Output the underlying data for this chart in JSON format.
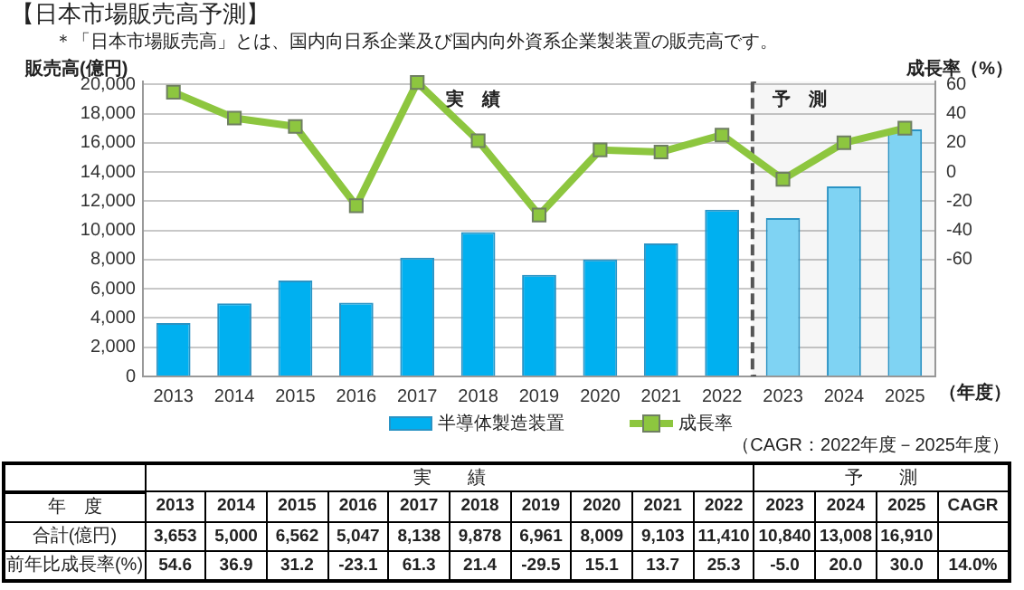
{
  "chart_data": {
    "type": "bar",
    "title": "【日本市場販売高予測】",
    "subtitle": "＊「日本市場販売高」とは、国内向日系企業及び国内向外資系企業製装置の販売高です。",
    "ylabel": "販売高(億円)",
    "y2label": "成長率（%）",
    "xlabel": "（年度）",
    "categories": [
      "2013",
      "2014",
      "2015",
      "2016",
      "2017",
      "2018",
      "2019",
      "2020",
      "2021",
      "2022",
      "2023",
      "2024",
      "2025"
    ],
    "series": [
      {
        "name": "半導体製造装置",
        "type": "bar",
        "colors": [
          "#00b0f0",
          "#00b0f0",
          "#00b0f0",
          "#00b0f0",
          "#00b0f0",
          "#00b0f0",
          "#00b0f0",
          "#00b0f0",
          "#00b0f0",
          "#00b0f0",
          "#7fd3f3",
          "#7fd3f3",
          "#7fd3f3"
        ],
        "values": [
          3653,
          5000,
          6562,
          5047,
          8138,
          9878,
          6961,
          8009,
          9103,
          11410,
          10840,
          13008,
          16910
        ],
        "value_labels": [
          "3,653",
          "5,000",
          "6,562",
          "5,047",
          "8,138",
          "9,878",
          "6,961",
          "8,009",
          "9,103",
          "11,410",
          "10,840",
          "13,008",
          "16,910"
        ]
      },
      {
        "name": "成長率",
        "type": "line",
        "axis": "y2",
        "color": "#8dc63f",
        "values": [
          54.6,
          36.9,
          31.2,
          -23.1,
          61.3,
          21.4,
          -29.5,
          15.1,
          13.7,
          25.3,
          -5.0,
          20.0,
          30.0
        ],
        "value_labels": [
          "54.6",
          "36.9",
          "31.2",
          "-23.1",
          "61.3",
          "21.4",
          "-29.5",
          "15.1",
          "13.7",
          "25.3",
          "-5.0",
          "20.0",
          "30.0"
        ]
      }
    ],
    "ylim": [
      0,
      20200
    ],
    "yticks": [
      0,
      {
        "value": 2000,
        "label": "2,000"
      },
      {
        "value": 4000,
        "label": "4,000"
      },
      {
        "value": 6000,
        "label": "6,000"
      },
      {
        "value": 8000,
        "label": "8,000"
      },
      {
        "value": 10000,
        "label": "10,000"
      },
      {
        "value": 12000,
        "label": "12,000"
      },
      {
        "value": 14000,
        "label": "14,000"
      },
      {
        "value": 16000,
        "label": "16,000"
      },
      {
        "value": 18000,
        "label": "18,000"
      },
      {
        "value": 20000,
        "label": "20,000"
      }
    ],
    "y2lim": [
      -140,
      62
    ],
    "y2ticks": [
      -60,
      -40,
      -20,
      0,
      20,
      40,
      60
    ],
    "bands": [
      {
        "axis": "x",
        "from": "2023",
        "to": "2025",
        "label": "予　測",
        "color": "#555555"
      }
    ],
    "annotations": [
      "（CAGR：2022年度－2025年度）",
      "実　績",
      "実　　績",
      "予　　測",
      "年　度",
      "合計(億円)",
      "前年比成長率(%)",
      "CAGR",
      "14.0%"
    ],
    "grid": "y",
    "legend": "bottom",
    "marker": "square",
    "line_style": "solid"
  }
}
